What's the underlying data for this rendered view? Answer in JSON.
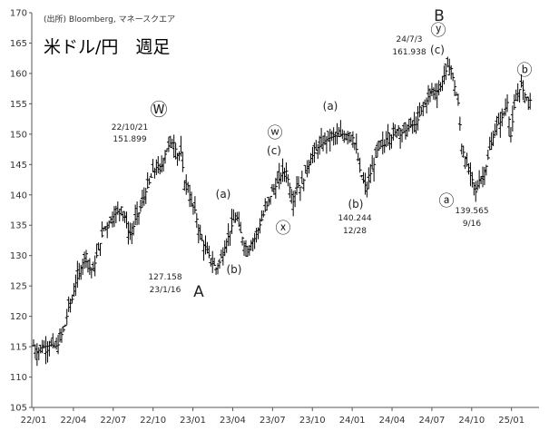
{
  "source_note": "(出所) Bloomberg, マネースクエア",
  "title": "米ドル/円　週足",
  "chart_data": {
    "type": "candlestick",
    "x_ticks": [
      "22/01",
      "22/04",
      "22/07",
      "22/10",
      "23/01",
      "23/04",
      "23/07",
      "23/10",
      "24/01",
      "24/04",
      "24/07",
      "24/10",
      "25/01"
    ],
    "ylim": [
      105,
      170
    ],
    "y_ticks": [
      105,
      110,
      115,
      120,
      125,
      130,
      135,
      140,
      145,
      150,
      155,
      160,
      165,
      170
    ],
    "grid": false,
    "series": [
      {
        "values": [
          [
            0,
            115.2
          ],
          [
            2,
            114.0
          ],
          [
            4,
            114.8
          ],
          [
            6,
            115.0
          ],
          [
            8,
            115.1
          ],
          [
            10,
            115.3
          ],
          [
            12,
            115.0
          ],
          [
            14,
            115.3
          ],
          [
            16,
            117.0
          ],
          [
            18,
            118.5
          ],
          [
            20,
            121.5
          ],
          [
            22,
            122.8
          ],
          [
            24,
            125.5
          ],
          [
            26,
            127.0
          ],
          [
            28,
            128.8
          ],
          [
            30,
            130.3
          ],
          [
            32,
            128.0
          ],
          [
            34,
            127.5
          ],
          [
            36,
            130.0
          ],
          [
            38,
            132.0
          ],
          [
            40,
            134.5
          ],
          [
            42,
            135.0
          ],
          [
            44,
            136.0
          ],
          [
            46,
            136.8
          ],
          [
            48,
            137.2
          ],
          [
            50,
            138.0
          ],
          [
            52,
            136.5
          ],
          [
            54,
            134.0
          ],
          [
            56,
            133.6
          ],
          [
            58,
            136.0
          ],
          [
            60,
            137.0
          ],
          [
            62,
            138.8
          ],
          [
            64,
            140.5
          ],
          [
            66,
            142.0
          ],
          [
            68,
            143.8
          ],
          [
            70,
            144.5
          ],
          [
            72,
            144.0
          ],
          [
            74,
            145.8
          ],
          [
            76,
            147.6
          ],
          [
            78,
            148.5
          ],
          [
            80,
            148.6
          ],
          [
            82,
            146.5
          ],
          [
            84,
            147.0
          ],
          [
            86,
            142.0
          ],
          [
            88,
            141.5
          ],
          [
            90,
            138.5
          ],
          [
            92,
            137.5
          ],
          [
            94,
            134.5
          ],
          [
            96,
            132.5
          ],
          [
            98,
            131.0
          ],
          [
            100,
            130.0
          ],
          [
            102,
            129.0
          ],
          [
            104,
            127.8
          ],
          [
            106,
            128.9
          ],
          [
            108,
            130.5
          ],
          [
            110,
            132.3
          ],
          [
            112,
            134.0
          ],
          [
            114,
            135.8
          ],
          [
            116,
            136.2
          ],
          [
            118,
            133.8
          ],
          [
            120,
            132.0
          ],
          [
            122,
            131.0
          ],
          [
            124,
            132.0
          ],
          [
            126,
            132.8
          ],
          [
            128,
            134.2
          ],
          [
            130,
            135.9
          ],
          [
            132,
            137.5
          ],
          [
            134,
            138.9
          ],
          [
            136,
            140.6
          ],
          [
            138,
            141.4
          ],
          [
            140,
            142.6
          ],
          [
            142,
            143.7
          ],
          [
            144,
            143.9
          ],
          [
            146,
            141.2
          ],
          [
            148,
            138.9
          ],
          [
            150,
            141.8
          ],
          [
            152,
            141.3
          ],
          [
            154,
            142.4
          ],
          [
            156,
            144.7
          ],
          [
            158,
            146.0
          ],
          [
            160,
            146.9
          ],
          [
            162,
            147.8
          ],
          [
            164,
            148.2
          ],
          [
            166,
            148.9
          ],
          [
            168,
            149.3
          ],
          [
            170,
            149.5
          ],
          [
            172,
            149.7
          ],
          [
            174,
            149.6
          ],
          [
            176,
            150.0
          ],
          [
            178,
            149.9
          ],
          [
            180,
            150.2
          ],
          [
            182,
            149.4
          ],
          [
            184,
            147.5
          ],
          [
            186,
            144.1
          ],
          [
            188,
            142.2
          ],
          [
            190,
            141.0
          ],
          [
            192,
            143.5
          ],
          [
            194,
            145.0
          ],
          [
            196,
            147.4
          ],
          [
            198,
            148.0
          ],
          [
            200,
            148.2
          ],
          [
            202,
            150.2
          ],
          [
            204,
            149.4
          ],
          [
            206,
            150.3
          ],
          [
            208,
            151.0
          ],
          [
            210,
            150.2
          ],
          [
            212,
            150.6
          ],
          [
            214,
            151.2
          ],
          [
            216,
            151.5
          ],
          [
            218,
            151.6
          ],
          [
            220,
            153.1
          ],
          [
            222,
            154.5
          ],
          [
            224,
            155.5
          ],
          [
            226,
            156.8
          ],
          [
            228,
            157.2
          ],
          [
            230,
            157.0
          ],
          [
            232,
            157.8
          ],
          [
            234,
            159.6
          ],
          [
            236,
            161.2
          ],
          [
            238,
            160.8
          ],
          [
            240,
            157.8
          ],
          [
            242,
            155.1
          ],
          [
            244,
            148.0
          ],
          [
            246,
            146.0
          ],
          [
            248,
            143.9
          ],
          [
            250,
            142.5
          ],
          [
            252,
            140.5
          ],
          [
            254,
            142.5
          ],
          [
            256,
            143.0
          ],
          [
            258,
            144.7
          ],
          [
            260,
            147.5
          ],
          [
            262,
            149.5
          ],
          [
            264,
            151.5
          ],
          [
            266,
            152.0
          ],
          [
            268,
            153.4
          ],
          [
            270,
            155.2
          ],
          [
            272,
            149.7
          ],
          [
            274,
            154.4
          ],
          [
            276,
            156.7
          ],
          [
            278,
            158.0
          ],
          [
            280,
            156.5
          ],
          [
            282,
            155.6
          ]
        ]
      }
    ],
    "annotations": [
      {
        "text": "Ⓦ"
      },
      {
        "text": "22/10/21"
      },
      {
        "text": "151.899"
      },
      {
        "text": "127.158"
      },
      {
        "text": "23/1/16"
      },
      {
        "text": "A"
      },
      {
        "text": "(a)"
      },
      {
        "text": "(b)"
      },
      {
        "text": "ⓦ"
      },
      {
        "text": "(c)"
      },
      {
        "text": "ⓧ"
      },
      {
        "text": "(a)"
      },
      {
        "text": "(b)"
      },
      {
        "text": "140.244"
      },
      {
        "text": "12/28"
      },
      {
        "text": "B"
      },
      {
        "text": "ⓨ"
      },
      {
        "text": "(c)"
      },
      {
        "text": "24/7/3"
      },
      {
        "text": "161.938"
      },
      {
        "text": "ⓐ"
      },
      {
        "text": "139.565"
      },
      {
        "text": "9/16"
      },
      {
        "text": "ⓑ"
      }
    ]
  }
}
